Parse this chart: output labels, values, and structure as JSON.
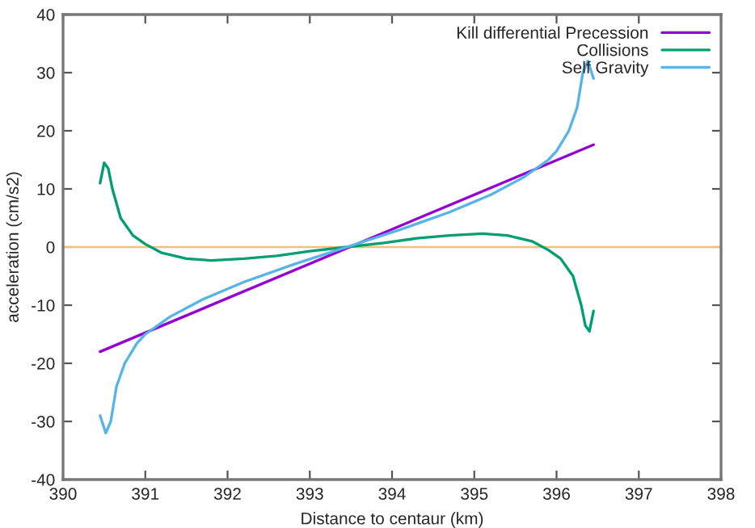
{
  "chart_data": {
    "type": "line",
    "xlabel": "Distance to centaur (km)",
    "ylabel": "acceleration (cm/s2)",
    "xlim": [
      390,
      398
    ],
    "xticks": [
      390,
      391,
      392,
      393,
      394,
      395,
      396,
      397,
      398
    ],
    "ylim": [
      -40,
      40
    ],
    "yticks": [
      -40,
      -30,
      -20,
      -10,
      0,
      10,
      20,
      30,
      40
    ],
    "grid": false,
    "legend": "top right",
    "ref_lines": [
      {
        "axis": "y",
        "value": 0,
        "color": "#f0c080"
      }
    ],
    "series": [
      {
        "name": "Kill differential Precession",
        "color": "#9400d3",
        "x": [
          390.45,
          396.45
        ],
        "values": [
          -18,
          17.6
        ]
      },
      {
        "name": "Collisions",
        "color": "#009e73",
        "x": [
          390.45,
          390.5,
          390.55,
          390.6,
          390.7,
          390.85,
          391.0,
          391.2,
          391.5,
          391.8,
          392.2,
          392.6,
          393.0,
          393.45,
          393.9,
          394.3,
          394.7,
          395.1,
          395.4,
          395.7,
          395.9,
          396.05,
          396.2,
          396.3,
          396.35,
          396.4,
          396.45
        ],
        "values": [
          11,
          14.5,
          13.5,
          10,
          5,
          2,
          0.5,
          -1,
          -2,
          -2.3,
          -2,
          -1.5,
          -0.7,
          0,
          0.7,
          1.5,
          2,
          2.3,
          2,
          1,
          -0.5,
          -2,
          -5,
          -10,
          -13.5,
          -14.5,
          -11
        ]
      },
      {
        "name": "Self Gravity",
        "color": "#56b4e9",
        "x": [
          390.45,
          390.52,
          390.58,
          390.65,
          390.75,
          390.9,
          391.0,
          391.3,
          391.7,
          392.2,
          392.8,
          393.45,
          394.1,
          394.7,
          395.2,
          395.6,
          395.9,
          396.0,
          396.15,
          396.25,
          396.32,
          396.38,
          396.45
        ],
        "values": [
          -29,
          -32,
          -30,
          -24,
          -20,
          -16.5,
          -15,
          -12,
          -9,
          -6,
          -3,
          0,
          3,
          6,
          9,
          12,
          15,
          16.5,
          20,
          24,
          30,
          32,
          29
        ]
      }
    ]
  }
}
